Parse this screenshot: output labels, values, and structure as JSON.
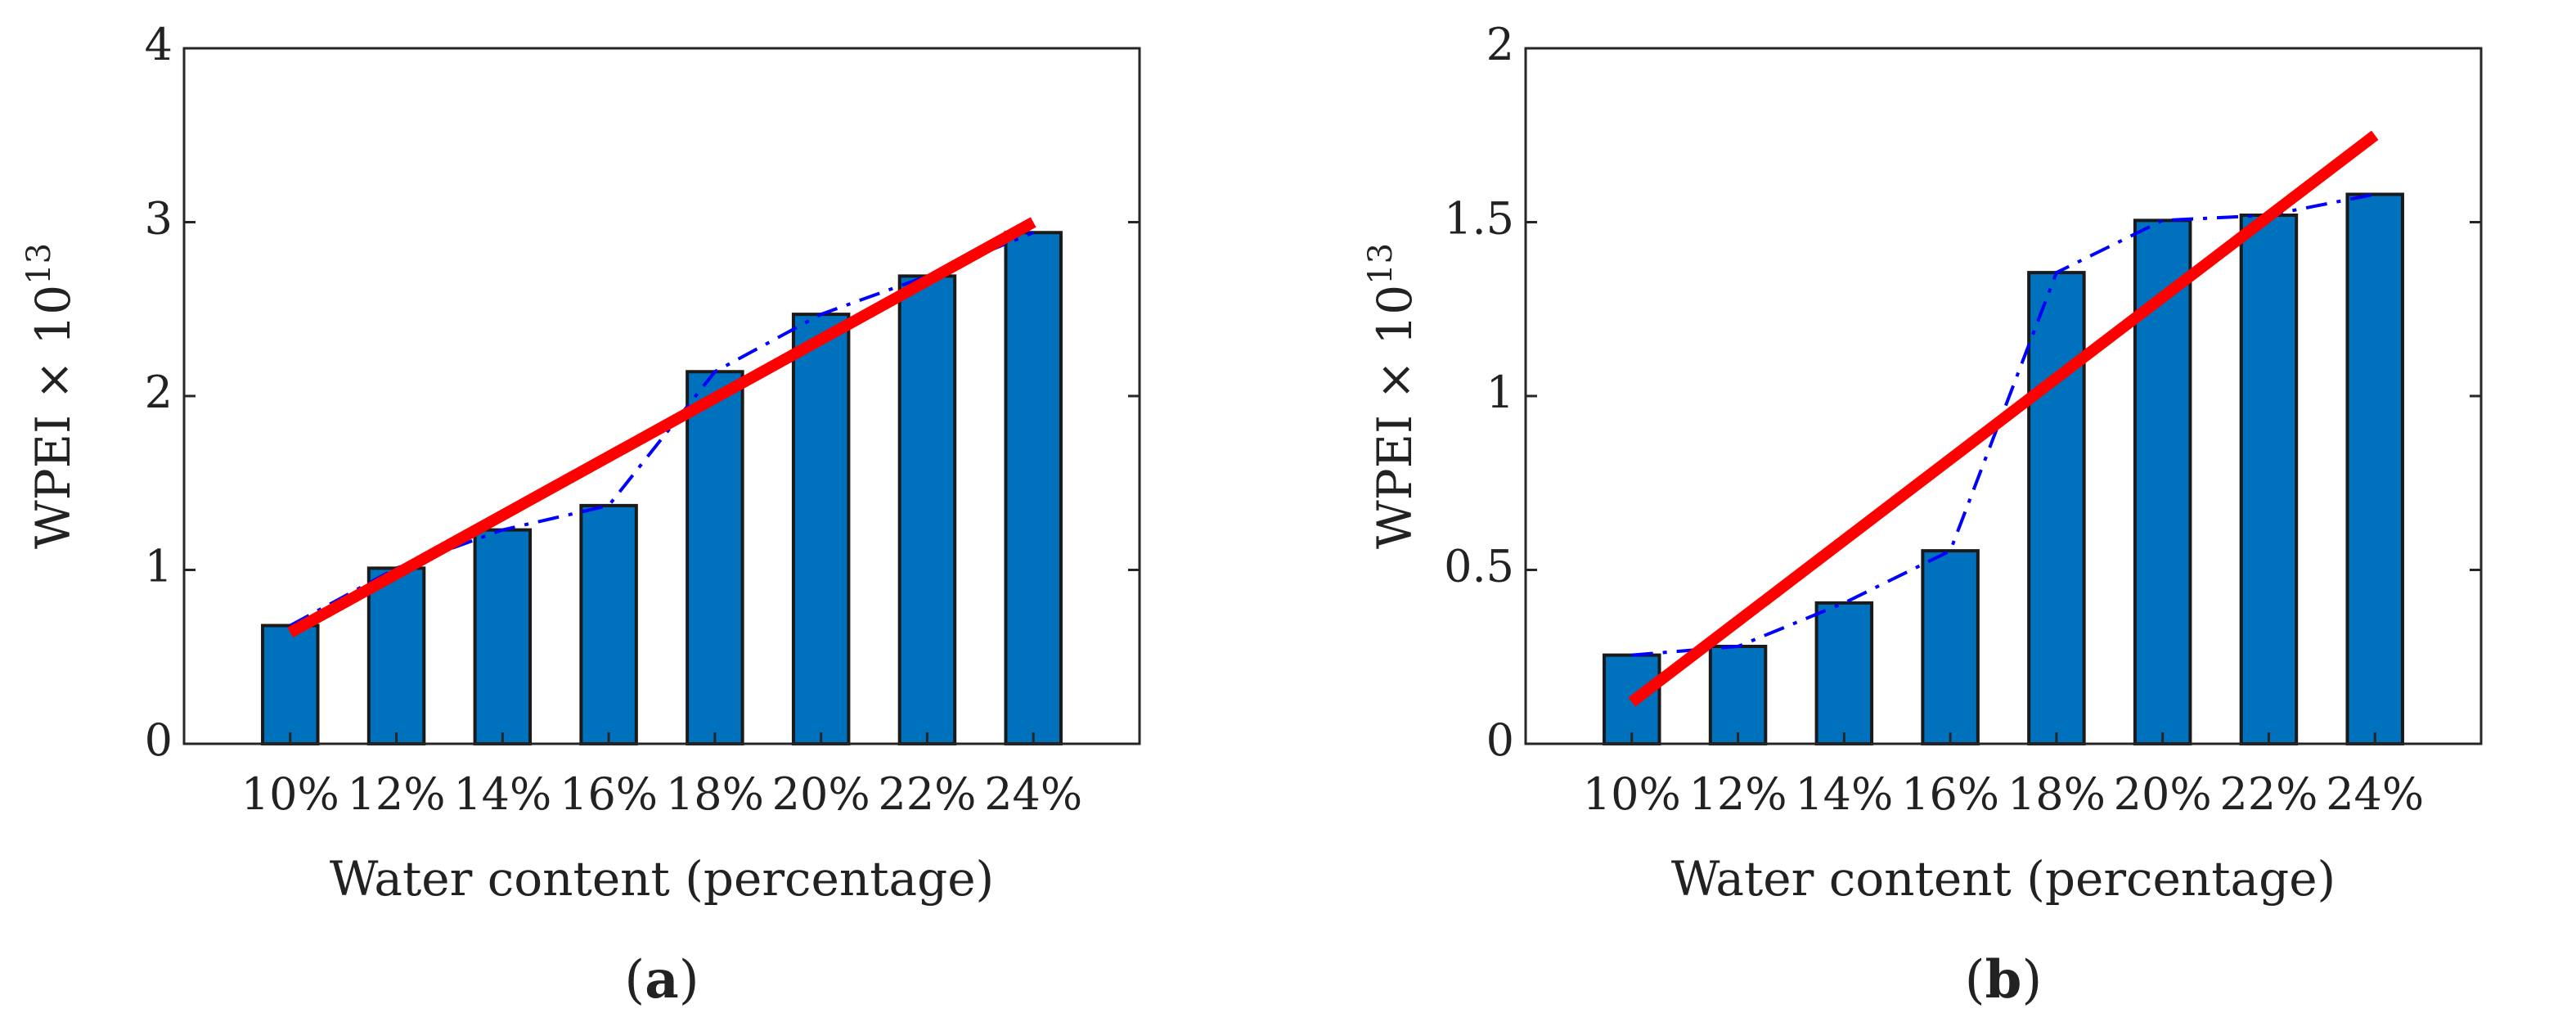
{
  "colors": {
    "bar_fill": "#0072BD",
    "bar_stroke": "#1a1a1a",
    "trend_line": "#0000FF",
    "fit_line": "#FF0000",
    "axis": "#262626"
  },
  "chart_data": [
    {
      "id": "a",
      "type": "bar",
      "caption_letter": "a",
      "caption_open": "(",
      "caption_close": ")",
      "categories": [
        "10%",
        "12%",
        "14%",
        "16%",
        "18%",
        "20%",
        "22%",
        "24%"
      ],
      "values": [
        0.68,
        1.01,
        1.23,
        1.37,
        2.14,
        2.47,
        2.69,
        2.94
      ],
      "series": [
        {
          "name": "WPEI",
          "kind": "bar",
          "values": [
            0.68,
            1.01,
            1.23,
            1.37,
            2.14,
            2.47,
            2.69,
            2.94
          ]
        },
        {
          "name": "trend",
          "kind": "line-dashdot",
          "values": [
            0.68,
            1.01,
            1.23,
            1.37,
            2.14,
            2.47,
            2.69,
            2.94
          ]
        },
        {
          "name": "linear fit",
          "kind": "line",
          "from": [
            1,
            0.64
          ],
          "to": [
            8,
            3.0
          ]
        }
      ],
      "ylim": [
        0,
        4
      ],
      "yticks": [
        0,
        1,
        2,
        3,
        4
      ],
      "ytick_labels": [
        "0",
        "1",
        "2",
        "3",
        "4"
      ],
      "xlabel": "Water content (percentage)",
      "ylabel_main": "WPEI × 10",
      "ylabel_exp": "13",
      "grid": false
    },
    {
      "id": "b",
      "type": "bar",
      "caption_letter": "b",
      "caption_open": "(",
      "caption_close": ")",
      "categories": [
        "10%",
        "12%",
        "14%",
        "16%",
        "18%",
        "20%",
        "22%",
        "24%"
      ],
      "values": [
        0.255,
        0.28,
        0.405,
        0.555,
        1.355,
        1.505,
        1.52,
        1.58
      ],
      "series": [
        {
          "name": "WPEI",
          "kind": "bar",
          "values": [
            0.255,
            0.28,
            0.405,
            0.555,
            1.355,
            1.505,
            1.52,
            1.58
          ]
        },
        {
          "name": "trend",
          "kind": "line-dashdot",
          "values": [
            0.255,
            0.28,
            0.405,
            0.555,
            1.355,
            1.505,
            1.52,
            1.58
          ]
        },
        {
          "name": "linear fit",
          "kind": "line",
          "from": [
            1,
            0.12
          ],
          "to": [
            8,
            1.75
          ]
        }
      ],
      "ylim": [
        0,
        2
      ],
      "yticks": [
        0,
        0.5,
        1,
        1.5,
        2
      ],
      "ytick_labels": [
        "0",
        "0.5",
        "1",
        "1.5",
        "2"
      ],
      "xlabel": "Water content (percentage)",
      "ylabel_main": "WPEI × 10",
      "ylabel_exp": "13",
      "grid": false
    }
  ]
}
